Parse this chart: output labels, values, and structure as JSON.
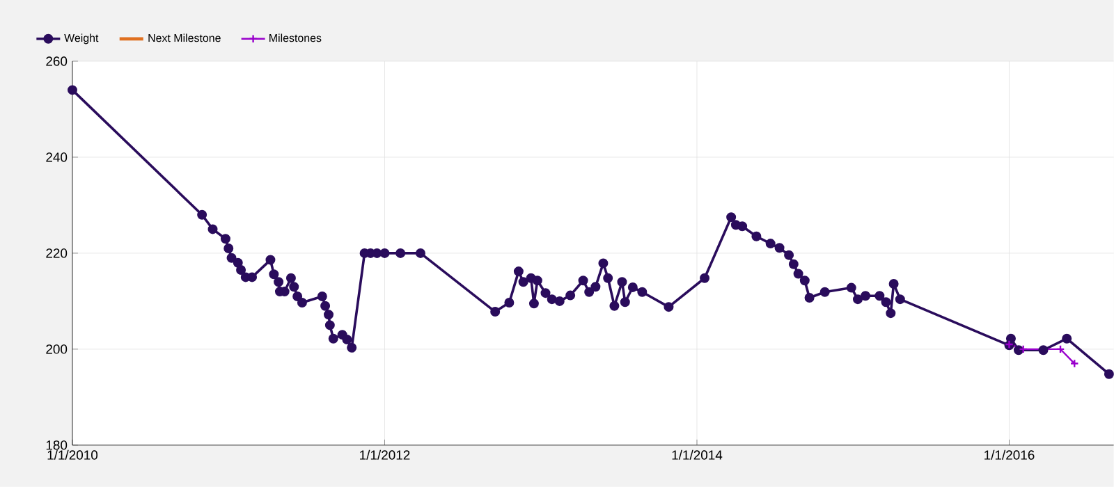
{
  "chart_data": {
    "type": "line",
    "xlim": [
      "2010-01-01",
      "2016-09-02"
    ],
    "xticks": [
      {
        "value": "2010-01-01",
        "label": "1/1/2010"
      },
      {
        "value": "2012-01-01",
        "label": "1/1/2012"
      },
      {
        "value": "2014-01-01",
        "label": "1/1/2014"
      },
      {
        "value": "2016-01-01",
        "label": "1/1/2016"
      }
    ],
    "ylim": [
      180,
      260
    ],
    "yticks": [
      180,
      200,
      220,
      240,
      260
    ],
    "grid": true,
    "legend": "top left",
    "line_style": "solid",
    "series": [
      {
        "name": "Weight",
        "color": "#2a0c5c",
        "marker": "circle",
        "x": [
          "2010-01-01",
          "2010-10-31",
          "2010-11-25",
          "2010-12-25",
          "2011-01-01",
          "2011-01-08",
          "2011-01-23",
          "2011-01-30",
          "2011-02-10",
          "2011-02-25",
          "2011-04-09",
          "2011-04-17",
          "2011-04-28",
          "2011-05-01",
          "2011-05-12",
          "2011-05-27",
          "2011-06-03",
          "2011-06-11",
          "2011-06-22",
          "2011-08-08",
          "2011-08-15",
          "2011-08-23",
          "2011-08-26",
          "2011-09-03",
          "2011-09-24",
          "2011-10-05",
          "2011-10-16",
          "2011-11-15",
          "2011-11-29",
          "2011-12-14",
          "2012-01-01",
          "2012-02-07",
          "2012-03-25",
          "2012-09-16",
          "2012-10-19",
          "2012-11-10",
          "2012-11-21",
          "2012-12-09",
          "2012-12-16",
          "2012-12-24",
          "2013-01-12",
          "2013-01-27",
          "2013-02-14",
          "2013-03-11",
          "2013-04-10",
          "2013-04-24",
          "2013-05-09",
          "2013-05-27",
          "2013-06-07",
          "2013-06-22",
          "2013-07-10",
          "2013-07-17",
          "2013-08-04",
          "2013-08-26",
          "2013-10-27",
          "2014-01-19",
          "2014-03-22",
          "2014-04-02",
          "2014-04-17",
          "2014-05-20",
          "2014-06-22",
          "2014-07-13",
          "2014-08-04",
          "2014-08-15",
          "2014-08-26",
          "2014-09-10",
          "2014-09-21",
          "2014-10-27",
          "2014-12-28",
          "2015-01-12",
          "2015-01-30",
          "2015-03-04",
          "2015-03-19",
          "2015-03-30",
          "2015-04-06",
          "2015-04-21",
          "2016-01-01",
          "2016-01-05",
          "2016-01-23",
          "2016-03-21",
          "2016-05-15",
          "2016-08-22"
        ],
        "values": [
          254,
          228,
          225,
          223,
          221,
          219,
          218,
          216.5,
          215,
          215,
          218.6,
          215.6,
          214,
          212,
          212,
          214.8,
          213,
          211,
          209.7,
          211,
          209,
          207.2,
          205,
          202.2,
          203,
          202,
          200.3,
          220,
          220,
          220,
          220,
          220,
          220,
          207.8,
          209.7,
          216.2,
          214,
          214.8,
          209.5,
          214.3,
          211.7,
          210.4,
          210,
          211.2,
          214.3,
          211.9,
          213,
          217.9,
          214.8,
          209,
          214,
          209.8,
          212.9,
          211.9,
          208.8,
          214.8,
          227.5,
          225.9,
          225.6,
          223.5,
          222,
          221.1,
          219.6,
          217.7,
          215.7,
          214.3,
          210.7,
          211.9,
          212.8,
          210.4,
          211.1,
          211.1,
          209.8,
          207.5,
          213.6,
          210.4,
          200.8,
          202.2,
          199.8,
          199.8,
          202.2,
          194.8
        ]
      },
      {
        "name": "Next Milestone",
        "color": "#e07020",
        "marker": "none"
      },
      {
        "name": "Milestones",
        "color": "#9900cc",
        "marker": "cross",
        "x": [
          "2016-01-01",
          "2016-02-03",
          "2016-04-30",
          "2016-06-02"
        ],
        "values": [
          201,
          200,
          200,
          197
        ]
      }
    ]
  }
}
